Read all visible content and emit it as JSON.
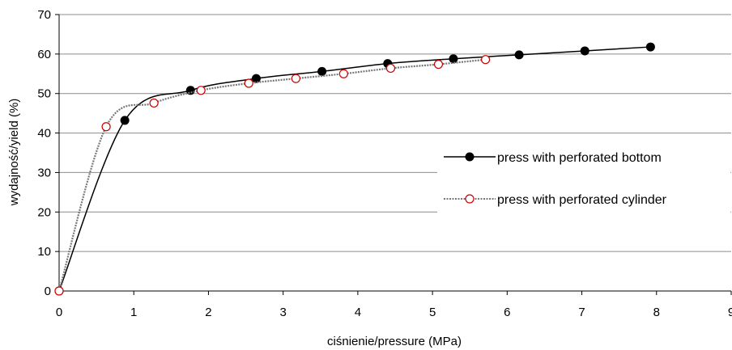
{
  "chart_data": {
    "type": "line",
    "title": "",
    "xlabel": "ciśnienie/pressure (MPa)",
    "ylabel": "wydajność/yield (%)",
    "xlim": [
      0,
      9
    ],
    "ylim": [
      0,
      70
    ],
    "x_ticks": [
      "0",
      "1",
      "2",
      "3",
      "4",
      "5",
      "6",
      "7",
      "8",
      "9"
    ],
    "y_ticks": [
      "0",
      "10",
      "20",
      "30",
      "40",
      "50",
      "60",
      "70"
    ],
    "grid": "horizontal",
    "legend_position": "right",
    "series": [
      {
        "name": "press with perforated bottom",
        "color": "#000000",
        "marker": "filled-circle",
        "line": "solid",
        "points": [
          [
            0,
            0
          ],
          [
            0.88,
            43.2
          ],
          [
            1.76,
            50.8
          ],
          [
            2.64,
            53.8
          ],
          [
            3.52,
            55.6
          ],
          [
            4.4,
            57.6
          ],
          [
            5.28,
            58.8
          ],
          [
            6.16,
            59.8
          ],
          [
            7.04,
            60.8
          ],
          [
            7.92,
            61.8
          ]
        ]
      },
      {
        "name": "press with perforated cylinder",
        "color": "#777777",
        "marker_fill": "#ffffff",
        "marker_edge": "#cc0000",
        "marker": "open-circle",
        "line": "dotted",
        "points": [
          [
            0,
            0
          ],
          [
            0.63,
            41.6
          ],
          [
            1.27,
            47.6
          ],
          [
            1.9,
            50.8
          ],
          [
            2.54,
            52.6
          ],
          [
            3.17,
            53.8
          ],
          [
            3.81,
            55.0
          ],
          [
            4.44,
            56.4
          ],
          [
            5.08,
            57.4
          ],
          [
            5.71,
            58.6
          ]
        ]
      }
    ]
  }
}
